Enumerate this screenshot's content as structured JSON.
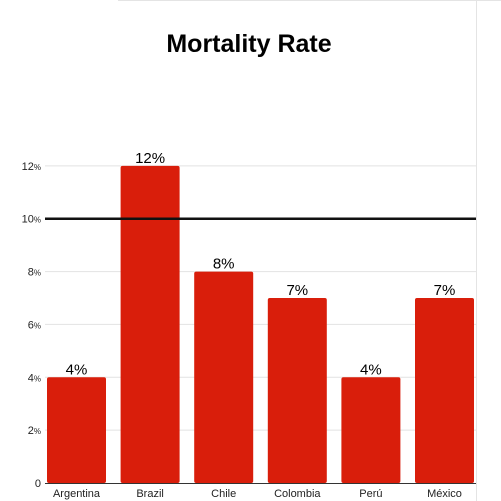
{
  "chart_data": {
    "type": "bar",
    "title": "Mortality Rate",
    "categories": [
      "Argentina",
      "Brazil",
      "Chile",
      "Colombia",
      "Perú",
      "México"
    ],
    "values": [
      4,
      12,
      8,
      7,
      4,
      7
    ],
    "data_labels": [
      "4%",
      "12%",
      "8%",
      "7%",
      "4%",
      "7%"
    ],
    "y_ticks": [
      {
        "value": 0,
        "label": "0",
        "suffix": ""
      },
      {
        "value": 2,
        "label": "2",
        "suffix": "%"
      },
      {
        "value": 4,
        "label": "4",
        "suffix": "%"
      },
      {
        "value": 6,
        "label": "6",
        "suffix": "%"
      },
      {
        "value": 8,
        "label": "8",
        "suffix": "%"
      },
      {
        "value": 10,
        "label": "10",
        "suffix": "%"
      },
      {
        "value": 12,
        "label": "12",
        "suffix": "%"
      }
    ],
    "ylim": [
      0,
      14
    ],
    "reference_line": 10,
    "grid": true,
    "legend": "none",
    "colors": {
      "bar": "#d91e0b",
      "reference_line": "#111111"
    }
  }
}
